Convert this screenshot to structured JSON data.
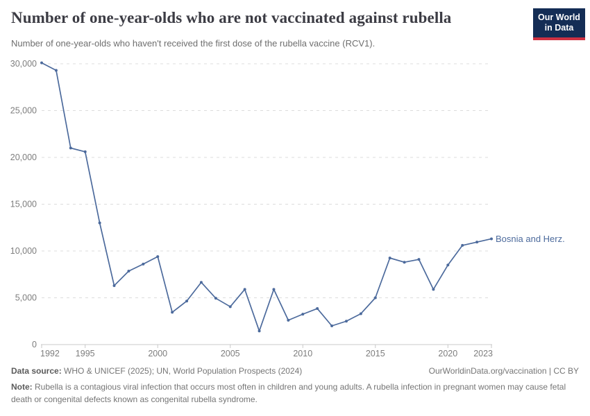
{
  "header": {
    "title": "Number of one-year-olds who are not vaccinated against rubella",
    "subtitle": "Number of one-year-olds who haven't received the first dose of the rubella vaccine (RCV1).",
    "logo": {
      "line1": "Our World",
      "line2": "in Data",
      "bg_color": "#142d55",
      "accent_color": "#cf3142"
    }
  },
  "chart_data": {
    "type": "line",
    "title": "Number of one-year-olds who are not vaccinated against rubella",
    "xlabel": "",
    "ylabel": "",
    "x": [
      1992,
      1993,
      1994,
      1995,
      1996,
      1997,
      1998,
      1999,
      2000,
      2001,
      2002,
      2003,
      2004,
      2005,
      2006,
      2007,
      2008,
      2009,
      2010,
      2011,
      2012,
      2013,
      2014,
      2015,
      2016,
      2017,
      2018,
      2019,
      2020,
      2021,
      2022,
      2023
    ],
    "series": [
      {
        "name": "Bosnia and Herz.",
        "color": "#4c6a9c",
        "values": [
          30100,
          29300,
          21000,
          20600,
          13000,
          6300,
          7850,
          8600,
          9400,
          3450,
          4650,
          6650,
          4950,
          4050,
          5900,
          1450,
          5900,
          2600,
          3250,
          3850,
          2000,
          2500,
          3300,
          5000,
          9250,
          8800,
          9100,
          5900,
          8500,
          10600,
          10950,
          11300
        ]
      }
    ],
    "x_ticks": [
      1992,
      1995,
      2000,
      2005,
      2010,
      2015,
      2020,
      2023
    ],
    "y_ticks": [
      0,
      5000,
      10000,
      15000,
      20000,
      25000,
      30000
    ],
    "xlim": [
      1992,
      2023
    ],
    "ylim": [
      0,
      30000
    ],
    "grid": "horizontal-dashed",
    "legend": "end-of-line-label",
    "end_label": "Bosnia and Herz.",
    "colors": {
      "gridline": "#dcdcdc",
      "axis_line": "#c8c8c8",
      "tick_text": "#7d7d7d"
    }
  },
  "footer": {
    "datasource_label": "Data source:",
    "datasource_text": " WHO & UNICEF (2025); UN, World Population Prospects (2024)",
    "rights": "OurWorldinData.org/vaccination | CC BY",
    "note_label": "Note:",
    "note_text": " Rubella is a contagious viral infection that occurs most often in children and young adults. A rubella infection in pregnant women may cause fetal death or congenital defects known as congenital rubella syndrome."
  }
}
